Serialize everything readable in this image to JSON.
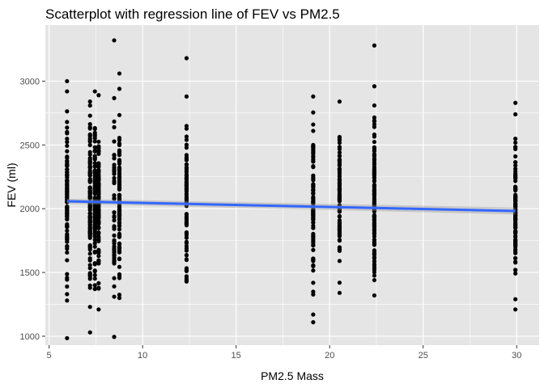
{
  "chart_data": {
    "type": "scatter",
    "title": "Scatterplot with regression line of FEV vs PM2.5",
    "xlabel": "PM2.5 Mass",
    "ylabel": "FEV (ml)",
    "xlim": [
      4.8,
      31.2
    ],
    "ylim": [
      930,
      3440
    ],
    "x_ticks": [
      5,
      10,
      15,
      20,
      25,
      30
    ],
    "y_ticks": [
      1000,
      1500,
      2000,
      2500,
      3000
    ],
    "x_tick_labels": [
      "5",
      "10",
      "15",
      "20",
      "25",
      "30"
    ],
    "y_tick_labels": [
      "1000",
      "1500",
      "2000",
      "2500",
      "3000"
    ],
    "grid": true,
    "legend": "none",
    "panel_background": "#e5e5e5",
    "grid_color": "#ffffff",
    "point_color": "#000000",
    "line_color": "#3366ff",
    "ribbon_color": "#999999",
    "regression": {
      "x": [
        5.96,
        29.93
      ],
      "y": [
        2058,
        1982
      ],
      "ci_lower": [
        2038,
        1955
      ],
      "ci_upper": [
        2078,
        2009
      ]
    },
    "groups": [
      {
        "x": 5.96,
        "n": 100,
        "min": 985,
        "max": 3000,
        "mean": 2050,
        "extremes": [
          985,
          1280,
          1330,
          2680,
          2920,
          3000
        ]
      },
      {
        "x": 7.19,
        "n": 120,
        "min": 1030,
        "max": 2840,
        "mean": 2040,
        "extremes": [
          1030,
          1230,
          2840
        ]
      },
      {
        "x": 7.45,
        "n": 110,
        "min": 1370,
        "max": 2920,
        "mean": 2070,
        "extremes": [
          1370,
          1400,
          2920
        ]
      },
      {
        "x": 7.65,
        "n": 100,
        "min": 1210,
        "max": 2890,
        "mean": 2060,
        "extremes": [
          1210,
          1380,
          2890
        ]
      },
      {
        "x": 8.48,
        "n": 50,
        "min": 995,
        "max": 3320,
        "mean": 2000,
        "extremes": [
          995,
          1310,
          3320
        ]
      },
      {
        "x": 8.76,
        "n": 110,
        "min": 1300,
        "max": 3060,
        "mean": 2050,
        "extremes": [
          1300,
          2940,
          3060
        ]
      },
      {
        "x": 12.35,
        "n": 100,
        "min": 1430,
        "max": 3180,
        "mean": 2030,
        "extremes": [
          1430,
          1470,
          2880,
          3180
        ]
      },
      {
        "x": 19.12,
        "n": 100,
        "min": 1110,
        "max": 2880,
        "mean": 2030,
        "extremes": [
          1110,
          1170,
          2660,
          2880
        ]
      },
      {
        "x": 20.53,
        "n": 110,
        "min": 1340,
        "max": 2840,
        "mean": 2030,
        "extremes": [
          1340,
          1420,
          2840
        ]
      },
      {
        "x": 22.39,
        "n": 140,
        "min": 1320,
        "max": 3280,
        "mean": 2030,
        "extremes": [
          1320,
          1440,
          2960,
          3280
        ]
      },
      {
        "x": 29.93,
        "n": 110,
        "min": 1210,
        "max": 2830,
        "mean": 2000,
        "extremes": [
          1210,
          1290,
          2740,
          2830
        ]
      }
    ]
  }
}
